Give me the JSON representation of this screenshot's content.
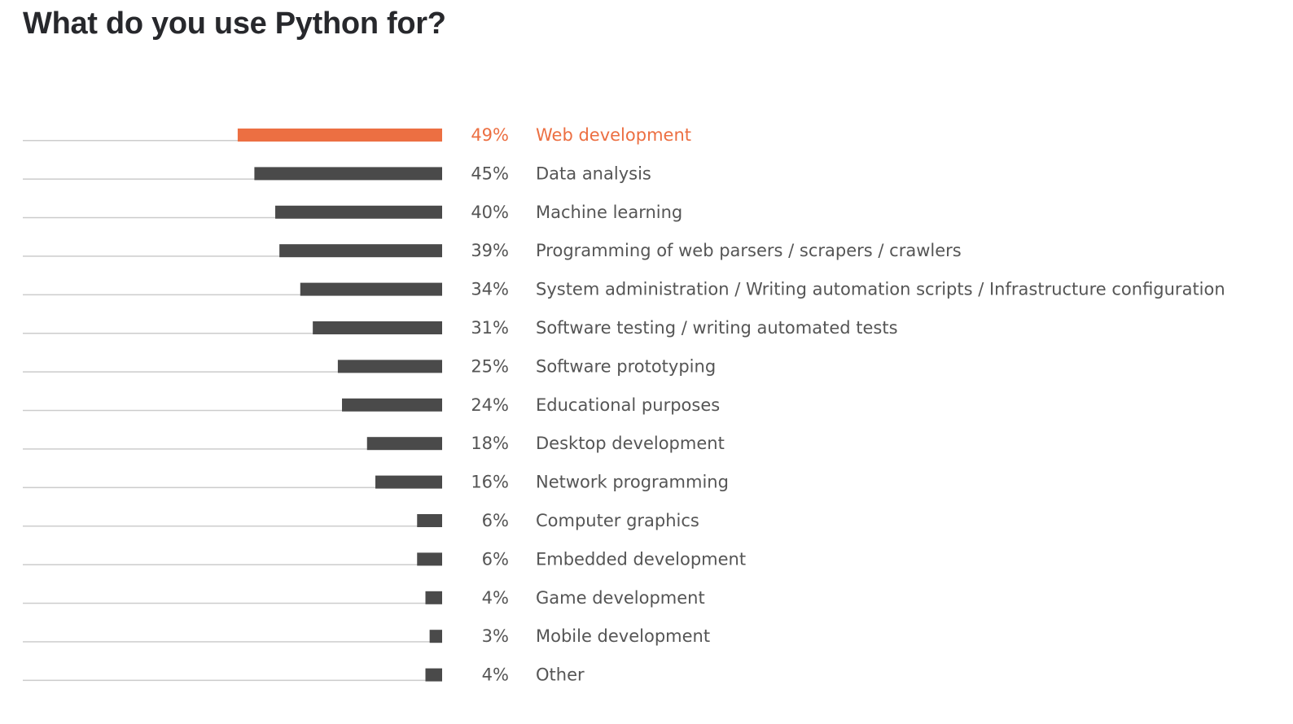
{
  "title": "What do you use Python for?",
  "colors": {
    "highlight": "#ec6f42",
    "bar": "#4a4a4a",
    "track": "#cccccc",
    "text": "#555555"
  },
  "chart_data": {
    "type": "bar",
    "orientation": "horizontal",
    "title": "What do you use Python for?",
    "xlabel": "",
    "ylabel": "",
    "xlim": [
      0,
      100
    ],
    "grid": false,
    "highlight_index": 0,
    "categories": [
      "Web development",
      "Data analysis",
      "Machine learning",
      "Programming of web parsers / scrapers / crawlers",
      "System administration / Writing automation scripts / Infrastructure configuration",
      "Software testing / writing automated tests",
      "Software prototyping",
      "Educational purposes",
      "Desktop development",
      "Network programming",
      "Computer graphics",
      "Embedded development",
      "Game development",
      "Mobile development",
      "Other"
    ],
    "values": [
      49,
      45,
      40,
      39,
      34,
      31,
      25,
      24,
      18,
      16,
      6,
      6,
      4,
      3,
      4
    ],
    "value_labels": [
      "49%",
      "45%",
      "40%",
      "39%",
      "34%",
      "31%",
      "25%",
      "24%",
      "18%",
      "16%",
      "6%",
      "6%",
      "4%",
      "3%",
      "4%"
    ]
  }
}
